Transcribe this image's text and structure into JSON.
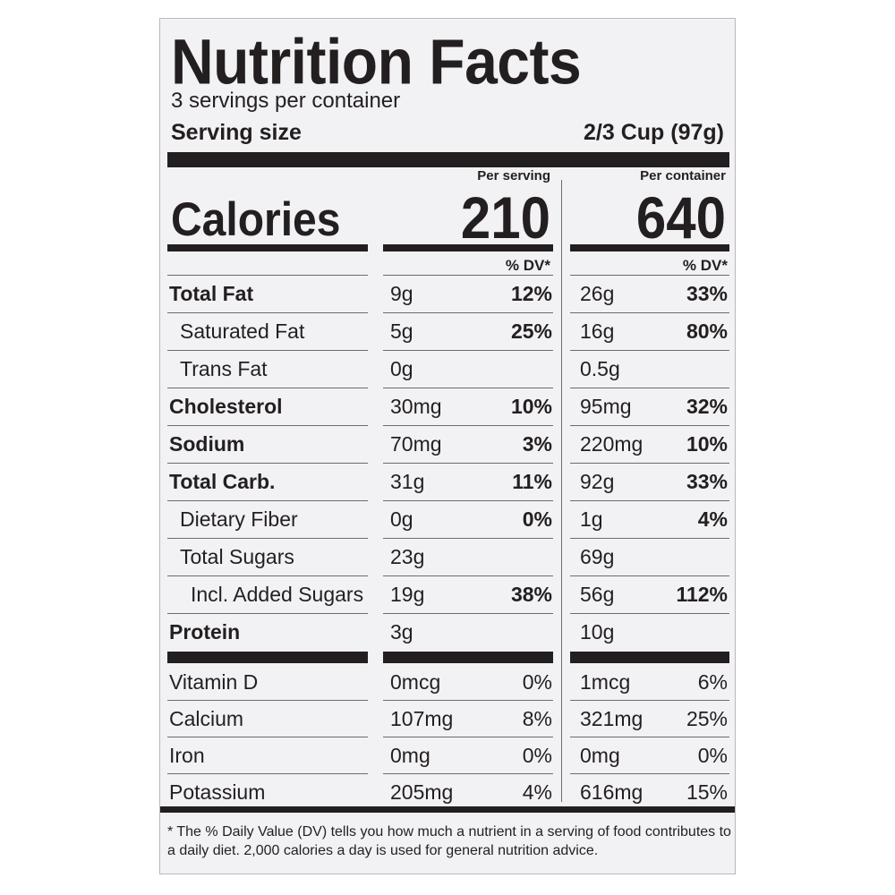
{
  "colors": {
    "ink": "#231f20",
    "panel": "#f2f1f3",
    "rule": "#6e6b70"
  },
  "label": {
    "title": "Nutrition Facts",
    "servings_per_container": "3 servings per container",
    "serving_size_label": "Serving size",
    "serving_size_value": "2/3 Cup (97g)",
    "per_serving_header": "Per serving",
    "per_container_header": "Per container",
    "calories_label": "Calories",
    "calories_per_serving": "210",
    "calories_per_container": "640",
    "dv_header": "% DV*",
    "nutrients": [
      {
        "name": "Total Fat",
        "bold": true,
        "indent": 0,
        "serving_amount": "9g",
        "serving_dv": "12%",
        "container_amount": "26g",
        "container_dv": "33%"
      },
      {
        "name": "Saturated Fat",
        "bold": false,
        "indent": 1,
        "serving_amount": "5g",
        "serving_dv": "25%",
        "container_amount": "16g",
        "container_dv": "80%"
      },
      {
        "name": "Trans Fat",
        "bold": false,
        "indent": 1,
        "serving_amount": "0g",
        "serving_dv": "",
        "container_amount": "0.5g",
        "container_dv": ""
      },
      {
        "name": "Cholesterol",
        "bold": true,
        "indent": 0,
        "serving_amount": "30mg",
        "serving_dv": "10%",
        "container_amount": "95mg",
        "container_dv": "32%"
      },
      {
        "name": "Sodium",
        "bold": true,
        "indent": 0,
        "serving_amount": "70mg",
        "serving_dv": "3%",
        "container_amount": "220mg",
        "container_dv": "10%"
      },
      {
        "name": "Total Carb.",
        "bold": true,
        "indent": 0,
        "serving_amount": "31g",
        "serving_dv": "11%",
        "container_amount": "92g",
        "container_dv": "33%"
      },
      {
        "name": "Dietary Fiber",
        "bold": false,
        "indent": 1,
        "serving_amount": "0g",
        "serving_dv": "0%",
        "container_amount": "1g",
        "container_dv": "4%"
      },
      {
        "name": "Total Sugars",
        "bold": false,
        "indent": 1,
        "serving_amount": "23g",
        "serving_dv": "",
        "container_amount": "69g",
        "container_dv": ""
      },
      {
        "name": "Incl. Added Sugars",
        "bold": false,
        "indent": 2,
        "serving_amount": "19g",
        "serving_dv": "38%",
        "container_amount": "56g",
        "container_dv": "112%"
      },
      {
        "name": "Protein",
        "bold": true,
        "indent": 0,
        "serving_amount": "3g",
        "serving_dv": "",
        "container_amount": "10g",
        "container_dv": ""
      }
    ],
    "vitamins": [
      {
        "name": "Vitamin D",
        "serving_amount": "0mcg",
        "serving_dv": "0%",
        "container_amount": "1mcg",
        "container_dv": "6%"
      },
      {
        "name": "Calcium",
        "serving_amount": "107mg",
        "serving_dv": "8%",
        "container_amount": "321mg",
        "container_dv": "25%"
      },
      {
        "name": "Iron",
        "serving_amount": "0mg",
        "serving_dv": "0%",
        "container_amount": "0mg",
        "container_dv": "0%"
      },
      {
        "name": "Potassium",
        "serving_amount": "205mg",
        "serving_dv": "4%",
        "container_amount": "616mg",
        "container_dv": "15%"
      }
    ],
    "footnote": "* The % Daily Value (DV) tells you how much a nutrient in a serving of food contributes to a daily diet. 2,000 calories a day is used for general nutrition advice."
  }
}
